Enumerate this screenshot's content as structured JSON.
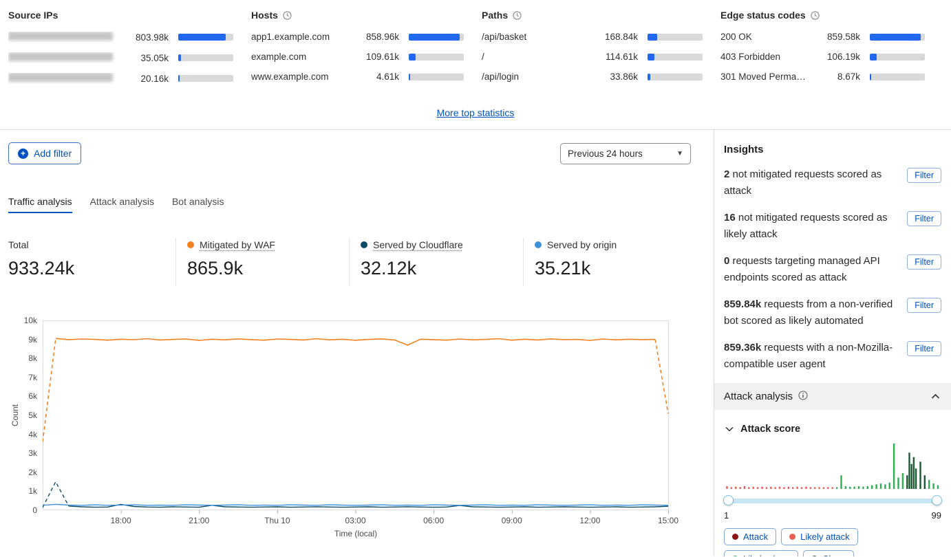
{
  "colors": {
    "accent_blue": "#0051c3",
    "bar_fill": "#2268ef",
    "bar_track": "#d9d9d9",
    "waf_orange": "#f48120",
    "cloudflare_dark": "#0b4a66",
    "origin_blue": "#3e92d8"
  },
  "top_stats": [
    {
      "title": "Source IPs",
      "clock": false,
      "rows": [
        {
          "redacted": true,
          "label": "",
          "value": "803.98k",
          "pct": 86
        },
        {
          "redacted": true,
          "label": "",
          "value": "35.05k",
          "pct": 5
        },
        {
          "redacted": true,
          "label": "",
          "value": "20.16k",
          "pct": 3
        }
      ]
    },
    {
      "title": "Hosts",
      "clock": true,
      "rows": [
        {
          "label": "app1.example.com",
          "value": "858.96k",
          "pct": 92
        },
        {
          "label": "example.com",
          "value": "109.61k",
          "pct": 12
        },
        {
          "label": "www.example.com",
          "value": "4.61k",
          "pct": 2
        }
      ]
    },
    {
      "title": "Paths",
      "clock": true,
      "rows": [
        {
          "label": "/api/basket",
          "value": "168.84k",
          "pct": 18
        },
        {
          "label": "/",
          "value": "114.61k",
          "pct": 13
        },
        {
          "label": "/api/login",
          "value": "33.86k",
          "pct": 5
        }
      ]
    },
    {
      "title": "Edge status codes",
      "clock": true,
      "rows": [
        {
          "label": "200 OK",
          "value": "859.58k",
          "pct": 92
        },
        {
          "label": "403 Forbidden",
          "value": "106.19k",
          "pct": 12
        },
        {
          "label": "301 Moved Permanently",
          "value": "8.67k",
          "pct": 2
        }
      ]
    }
  ],
  "more_link": "More top statistics",
  "toolbar": {
    "add_filter": "Add filter",
    "time_range": "Previous 24 hours"
  },
  "tabs": [
    {
      "label": "Traffic analysis",
      "active": true
    },
    {
      "label": "Attack analysis",
      "active": false
    },
    {
      "label": "Bot analysis",
      "active": false
    }
  ],
  "summary": [
    {
      "label": "Total",
      "value": "933.24k",
      "dot": null,
      "underline": false
    },
    {
      "label": "Mitigated by WAF",
      "value": "865.9k",
      "dot": "#f48120",
      "underline": true
    },
    {
      "label": "Served by Cloudflare",
      "value": "32.12k",
      "dot": "#0b4a66",
      "underline": true
    },
    {
      "label": "Served by origin",
      "value": "35.21k",
      "dot": "#3e92d8",
      "underline": false
    }
  ],
  "chart_data": {
    "type": "line",
    "xlabel": "Time (local)",
    "ylabel": "Count",
    "ylim": [
      0,
      10000
    ],
    "yticks": [
      "0",
      "1k",
      "2k",
      "3k",
      "4k",
      "5k",
      "6k",
      "7k",
      "8k",
      "9k",
      "10k"
    ],
    "xticks": [
      {
        "pos": 0.125,
        "label": "18:00"
      },
      {
        "pos": 0.25,
        "label": "21:00"
      },
      {
        "pos": 0.375,
        "label": "Thu 10"
      },
      {
        "pos": 0.5,
        "label": "03:00"
      },
      {
        "pos": 0.625,
        "label": "06:00"
      },
      {
        "pos": 0.75,
        "label": "09:00"
      },
      {
        "pos": 0.875,
        "label": "12:00"
      },
      {
        "pos": 1,
        "label": "15:00"
      }
    ],
    "series": [
      {
        "name": "Mitigated by WAF",
        "color": "#f48120",
        "width": 1.6,
        "dashed_head": 1,
        "dashed_tail": 1,
        "values": [
          3600,
          9050,
          8990,
          9020,
          9000,
          8960,
          9010,
          8985,
          9040,
          8970,
          9000,
          9025,
          8950,
          9010,
          8980,
          9030,
          8990,
          8960,
          9020,
          9000,
          8970,
          9040,
          8980,
          9010,
          8955,
          9000,
          9030,
          8970,
          8700,
          9010,
          8990,
          8960,
          9020,
          8980,
          9000,
          9040,
          8960,
          9010,
          8970,
          9030,
          8990,
          9000,
          8950,
          9020,
          8980,
          9010,
          8990,
          9000,
          5100
        ]
      },
      {
        "name": "Served by Cloudflare",
        "color": "#0b4a66",
        "width": 1.4,
        "dashed_head": 2,
        "dashed_tail": 0,
        "values": [
          150,
          1500,
          220,
          180,
          160,
          170,
          310,
          200,
          170,
          160,
          180,
          170,
          160,
          260,
          180,
          170,
          160,
          170,
          180,
          160,
          170,
          185,
          170,
          160,
          170,
          180,
          160,
          170,
          185,
          170,
          160,
          170,
          250,
          180,
          170,
          160,
          170,
          180,
          160,
          170,
          180,
          170,
          160,
          170,
          180,
          160,
          170,
          180,
          210
        ]
      },
      {
        "name": "Served by origin",
        "color": "#3e92d8",
        "width": 1.4,
        "dashed_head": 0,
        "dashed_tail": 0,
        "values": [
          260,
          310,
          270,
          260,
          285,
          260,
          270,
          285,
          260,
          270,
          260,
          285,
          270,
          260,
          270,
          285,
          260,
          270,
          260,
          285,
          270,
          260,
          285,
          270,
          260,
          270,
          285,
          260,
          270,
          260,
          285,
          270,
          260,
          270,
          285,
          260,
          270,
          260,
          285,
          270,
          260,
          270,
          285,
          260,
          270,
          260,
          285,
          270,
          260
        ]
      }
    ]
  },
  "insights": {
    "title": "Insights",
    "filter_label": "Filter",
    "items": [
      {
        "value": "2",
        "text": "not mitigated requests scored as attack"
      },
      {
        "value": "16",
        "text": "not mitigated requests scored as likely attack"
      },
      {
        "value": "0",
        "text": "requests targeting managed API endpoints scored as attack"
      },
      {
        "value": "859.84k",
        "text": "requests from a non-verified bot scored as likely automated"
      },
      {
        "value": "859.36k",
        "text": "requests with a non-Mozilla-compatible user agent"
      }
    ]
  },
  "attack_panel": {
    "title": "Attack analysis",
    "score_label": "Attack score",
    "slider_min": "1",
    "slider_max": "99",
    "legend": [
      {
        "key": "attack",
        "label": "Attack",
        "color": "#8c1515"
      },
      {
        "key": "likely_attack",
        "label": "Likely attack",
        "color": "#ec5f57"
      },
      {
        "key": "likely_clean",
        "label": "Likely clean",
        "color": "#2fae54"
      },
      {
        "key": "clean",
        "label": "Clean",
        "color": "#1d5733"
      }
    ],
    "histogram": [
      {
        "x": 2,
        "h": 6,
        "c": "likely_attack"
      },
      {
        "x": 4,
        "h": 4,
        "c": "likely_attack"
      },
      {
        "x": 6,
        "h": 5,
        "c": "likely_attack"
      },
      {
        "x": 8,
        "h": 4,
        "c": "likely_attack"
      },
      {
        "x": 10,
        "h": 6,
        "c": "likely_attack"
      },
      {
        "x": 12,
        "h": 4,
        "c": "likely_attack"
      },
      {
        "x": 14,
        "h": 5,
        "c": "likely_attack"
      },
      {
        "x": 16,
        "h": 4,
        "c": "likely_attack"
      },
      {
        "x": 18,
        "h": 5,
        "c": "likely_attack"
      },
      {
        "x": 20,
        "h": 4,
        "c": "likely_attack"
      },
      {
        "x": 22,
        "h": 5,
        "c": "likely_attack"
      },
      {
        "x": 24,
        "h": 4,
        "c": "likely_attack"
      },
      {
        "x": 26,
        "h": 5,
        "c": "likely_attack"
      },
      {
        "x": 28,
        "h": 4,
        "c": "likely_attack"
      },
      {
        "x": 30,
        "h": 5,
        "c": "likely_attack"
      },
      {
        "x": 32,
        "h": 4,
        "c": "likely_attack"
      },
      {
        "x": 34,
        "h": 5,
        "c": "likely_attack"
      },
      {
        "x": 36,
        "h": 4,
        "c": "likely_attack"
      },
      {
        "x": 38,
        "h": 5,
        "c": "likely_attack"
      },
      {
        "x": 40,
        "h": 4,
        "c": "likely_attack"
      },
      {
        "x": 42,
        "h": 4,
        "c": "likely_attack"
      },
      {
        "x": 44,
        "h": 4,
        "c": "likely_attack"
      },
      {
        "x": 46,
        "h": 4,
        "c": "likely_attack"
      },
      {
        "x": 48,
        "h": 4,
        "c": "likely_attack"
      },
      {
        "x": 50,
        "h": 4,
        "c": "likely_attack"
      },
      {
        "x": 52,
        "h": 4,
        "c": "likely_clean"
      },
      {
        "x": 54,
        "h": 30,
        "c": "likely_clean"
      },
      {
        "x": 56,
        "h": 6,
        "c": "likely_clean"
      },
      {
        "x": 58,
        "h": 5,
        "c": "likely_clean"
      },
      {
        "x": 60,
        "h": 5,
        "c": "likely_clean"
      },
      {
        "x": 62,
        "h": 6,
        "c": "likely_clean"
      },
      {
        "x": 64,
        "h": 5,
        "c": "likely_clean"
      },
      {
        "x": 66,
        "h": 6,
        "c": "likely_clean"
      },
      {
        "x": 68,
        "h": 8,
        "c": "likely_clean"
      },
      {
        "x": 70,
        "h": 10,
        "c": "likely_clean"
      },
      {
        "x": 72,
        "h": 12,
        "c": "likely_clean"
      },
      {
        "x": 74,
        "h": 10,
        "c": "likely_clean"
      },
      {
        "x": 76,
        "h": 14,
        "c": "likely_clean"
      },
      {
        "x": 78,
        "h": 100,
        "c": "likely_clean"
      },
      {
        "x": 80,
        "h": 25,
        "c": "likely_clean"
      },
      {
        "x": 82,
        "h": 35,
        "c": "likely_clean"
      },
      {
        "x": 84,
        "h": 30,
        "c": "clean"
      },
      {
        "x": 85,
        "h": 80,
        "c": "clean"
      },
      {
        "x": 86,
        "h": 55,
        "c": "clean"
      },
      {
        "x": 87,
        "h": 70,
        "c": "clean"
      },
      {
        "x": 88,
        "h": 45,
        "c": "clean"
      },
      {
        "x": 90,
        "h": 60,
        "c": "clean"
      },
      {
        "x": 92,
        "h": 30,
        "c": "clean"
      },
      {
        "x": 94,
        "h": 20,
        "c": "likely_clean"
      },
      {
        "x": 96,
        "h": 12,
        "c": "likely_clean"
      },
      {
        "x": 98,
        "h": 8,
        "c": "likely_clean"
      }
    ]
  }
}
